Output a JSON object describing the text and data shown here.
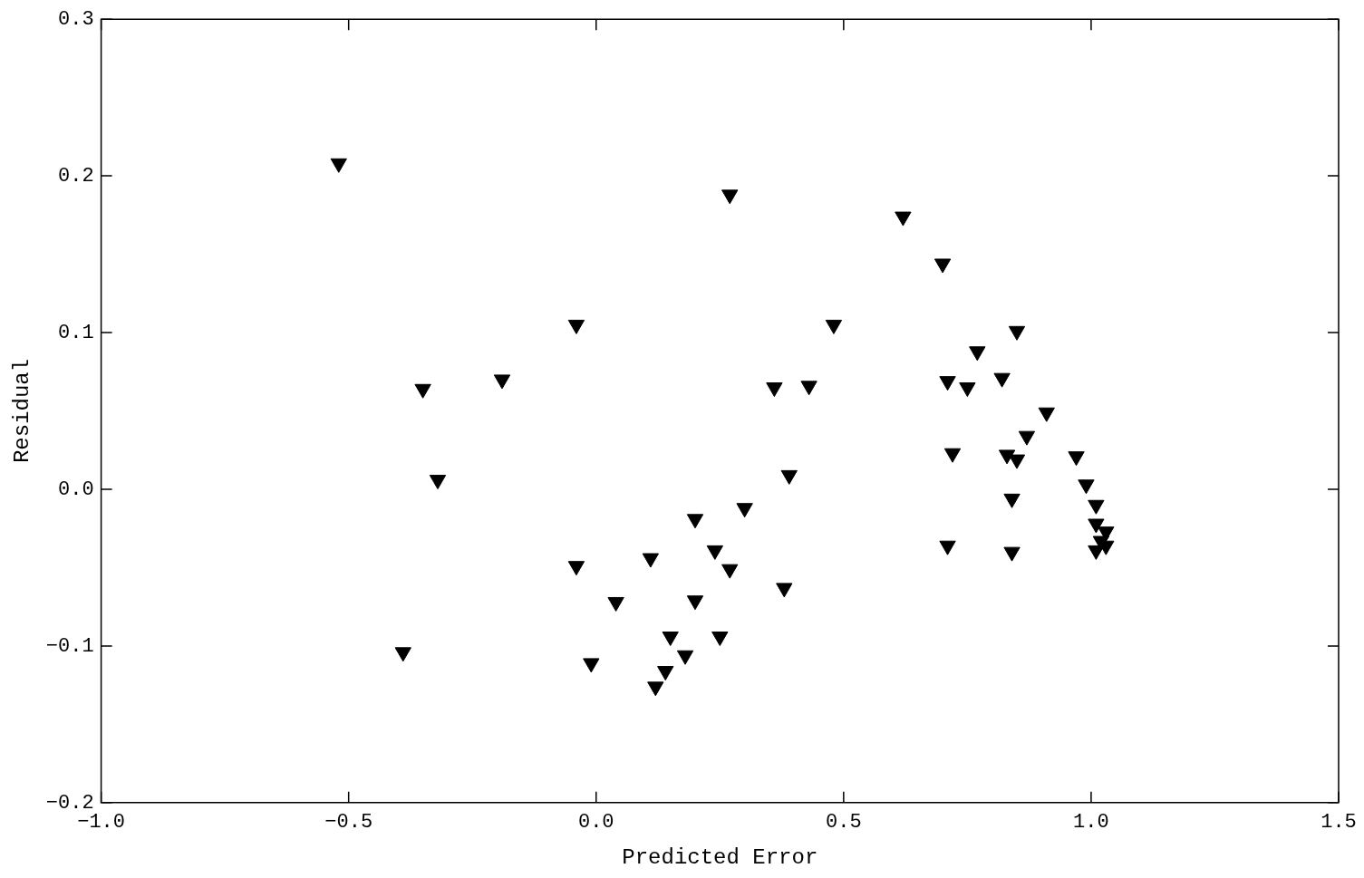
{
  "chart_data": {
    "type": "scatter",
    "xlabel": "Predicted Error",
    "ylabel": "Residual",
    "marker": "triangle",
    "grid": false,
    "legend": false,
    "series": [
      {
        "color": "#000000",
        "x": [
          -0.52,
          0.27,
          0.62,
          0.7,
          -0.04,
          0.48,
          0.85,
          -0.35,
          -0.19,
          0.36,
          0.43,
          0.77,
          0.71,
          0.75,
          0.82,
          0.91,
          0.87,
          0.72,
          0.83,
          0.85,
          0.97,
          0.99,
          0.84,
          1.01,
          1.01,
          1.03,
          1.02,
          1.03,
          1.01,
          0.71,
          0.84,
          -0.32,
          0.39,
          0.3,
          0.2,
          0.24,
          0.27,
          -0.04,
          0.11,
          0.38,
          0.04,
          0.2,
          0.15,
          0.25,
          -0.39,
          -0.01,
          0.18,
          0.14,
          0.12
        ],
        "values": [
          0.208,
          0.188,
          0.174,
          0.144,
          0.105,
          0.105,
          0.101,
          0.064,
          0.07,
          0.065,
          0.066,
          0.088,
          0.069,
          0.065,
          0.071,
          0.049,
          0.034,
          0.023,
          0.022,
          0.019,
          0.021,
          0.003,
          -0.006,
          -0.01,
          -0.022,
          -0.027,
          -0.033,
          -0.036,
          -0.039,
          -0.036,
          -0.04,
          0.006,
          0.009,
          -0.012,
          -0.019,
          -0.039,
          -0.051,
          -0.049,
          -0.044,
          -0.063,
          -0.072,
          -0.071,
          -0.094,
          -0.094,
          -0.104,
          -0.111,
          -0.106,
          -0.116,
          -0.126
        ]
      }
    ],
    "xlim": [
      -1.0,
      1.5
    ],
    "ylim": [
      -0.2,
      0.3
    ],
    "xticks": [
      {
        "value": -1.0,
        "label": "−1.0"
      },
      {
        "value": -0.5,
        "label": "−0.5"
      },
      {
        "value": 0,
        "label": "0.0"
      },
      {
        "value": 0.5,
        "label": "0.5"
      },
      {
        "value": 1.0,
        "label": "1.0"
      },
      {
        "value": 1.5,
        "label": "1.5"
      }
    ],
    "yticks": [
      {
        "value": -0.2,
        "label": "−0.2"
      },
      {
        "value": -0.1,
        "label": "−0.1"
      },
      {
        "value": 0,
        "label": "0.0"
      },
      {
        "value": 0.1,
        "label": "0.1"
      },
      {
        "value": 0.2,
        "label": "0.2"
      },
      {
        "value": 0.3,
        "label": "0.3"
      }
    ]
  }
}
